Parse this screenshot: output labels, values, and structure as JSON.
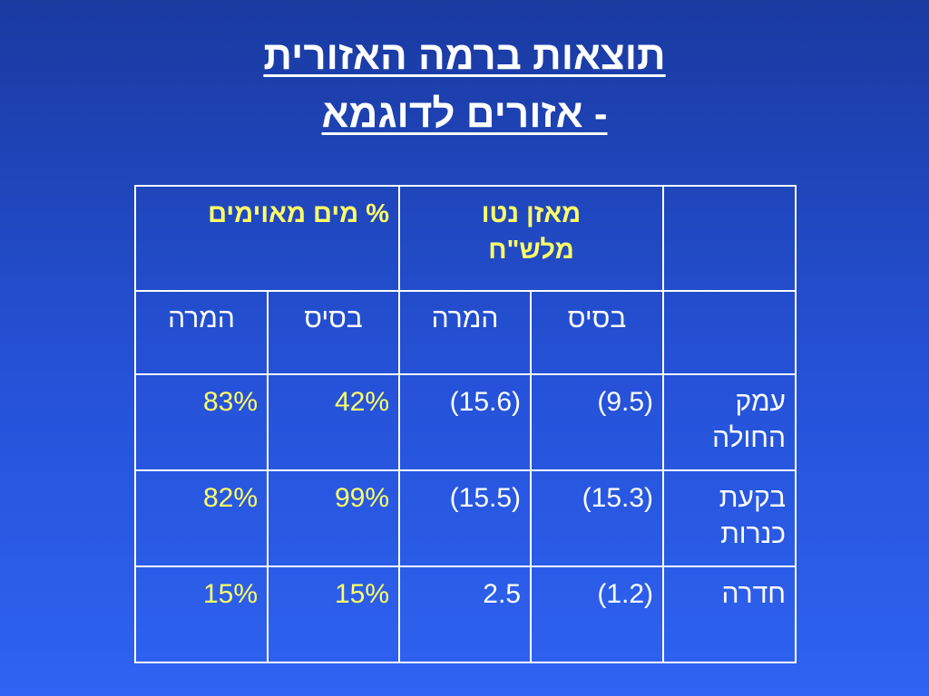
{
  "title": {
    "line1": "תוצאות ברמה האזורית",
    "line2": "- אזורים לדוגמא "
  },
  "table": {
    "group_headers": {
      "net_balance_line1": "מאזן נטו",
      "net_balance_line2": "מלש\"ח",
      "threatened_water": "% מים מאוימים"
    },
    "sub_headers": {
      "balance_base": "בסיס",
      "balance_goal": "המרה",
      "water_base": "בסיס",
      "water_goal": "המרה"
    },
    "rows": [
      {
        "region_line1": "עמק",
        "region_line2": "החולה",
        "balance_base": "(9.5)",
        "balance_goal": "(15.6)",
        "water_base": "42%",
        "water_goal": "83%"
      },
      {
        "region_line1": "בקעת",
        "region_line2": "כנרות",
        "balance_base": "(15.3)",
        "balance_goal": "(15.5)",
        "water_base": "99%",
        "water_goal": "82%"
      },
      {
        "region_line1": "חדרה",
        "region_line2": "",
        "balance_base": "(1.2)",
        "balance_goal": "2.5",
        "water_base": "15%",
        "water_goal": "15%"
      }
    ]
  },
  "colors": {
    "background_top": "#1a3aa0",
    "background_bottom": "#2f63f2",
    "heading_yellow": "#ffff66",
    "text_white": "#ffffff"
  }
}
